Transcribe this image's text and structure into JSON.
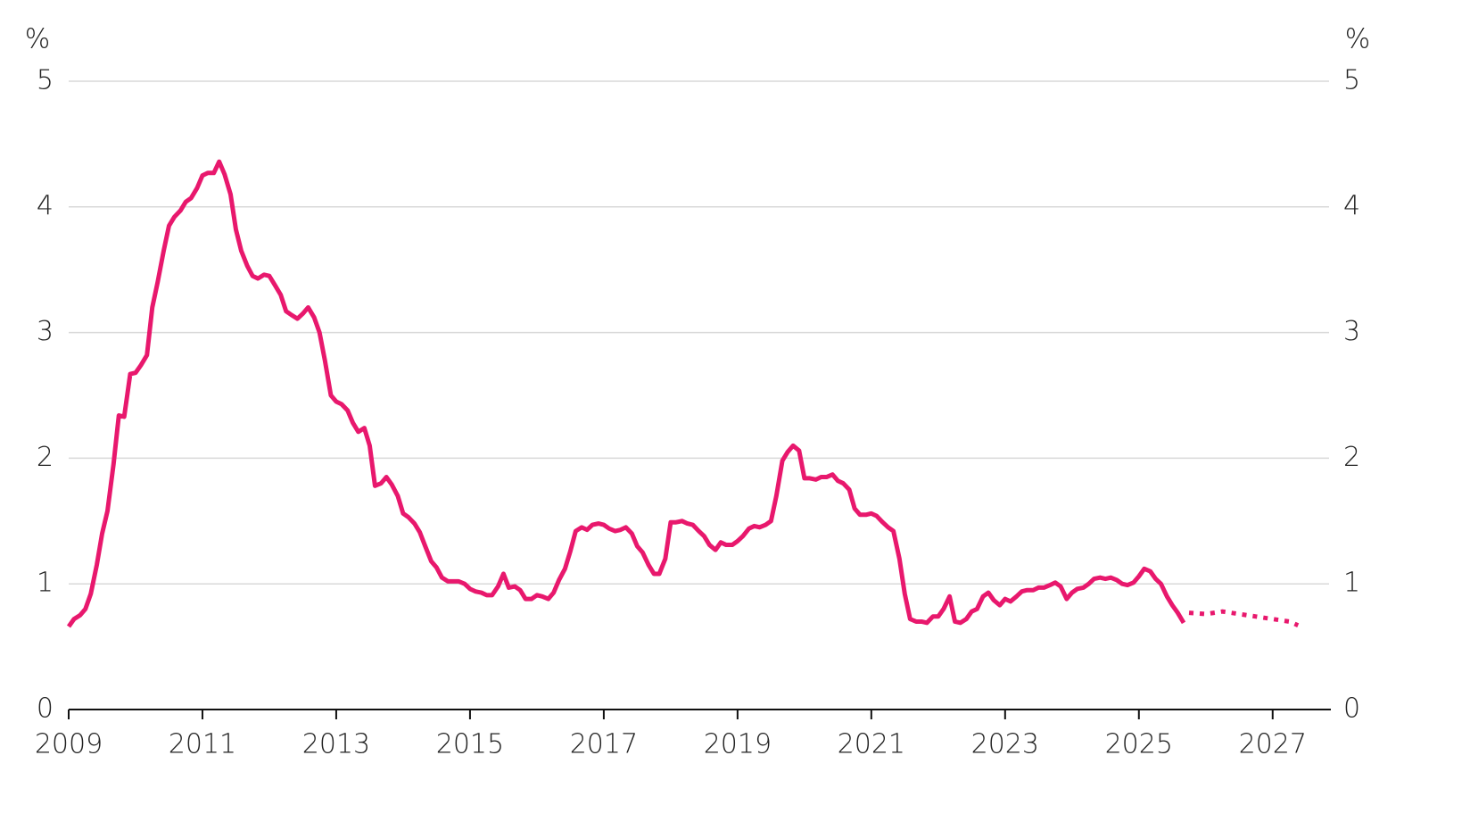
{
  "chart_data": {
    "type": "line",
    "ylabel": "%",
    "y2label": "%",
    "xlim": [
      2009,
      2027.87
    ],
    "xticks": [
      2009,
      2011,
      2013,
      2015,
      2017,
      2019,
      2021,
      2023,
      2025,
      2027
    ],
    "ylim": [
      0,
      5
    ],
    "yticks": [
      0,
      1,
      2,
      3,
      4,
      5
    ],
    "y2lim": [
      0,
      5
    ],
    "y2ticks": [
      0,
      1,
      2,
      3,
      4,
      5
    ],
    "grid": true,
    "series": [
      {
        "color": "#e8186d",
        "style": "solid",
        "x": [
          2009,
          2009.08,
          2009.17,
          2009.25,
          2009.33,
          2009.42,
          2009.5,
          2009.58,
          2009.67,
          2009.75,
          2009.83,
          2009.92,
          2010,
          2010.08,
          2010.17,
          2010.25,
          2010.33,
          2010.42,
          2010.5,
          2010.58,
          2010.67,
          2010.75,
          2010.83,
          2010.92,
          2011,
          2011.08,
          2011.17,
          2011.25,
          2011.33,
          2011.42,
          2011.5,
          2011.58,
          2011.67,
          2011.75,
          2011.83,
          2011.92,
          2012,
          2012.08,
          2012.17,
          2012.25,
          2012.33,
          2012.42,
          2012.5,
          2012.58,
          2012.67,
          2012.75,
          2012.83,
          2012.92,
          2013,
          2013.08,
          2013.17,
          2013.25,
          2013.33,
          2013.42,
          2013.5,
          2013.58,
          2013.67,
          2013.75,
          2013.83,
          2013.92,
          2014,
          2014.08,
          2014.17,
          2014.25,
          2014.33,
          2014.42,
          2014.5,
          2014.58,
          2014.67,
          2014.75,
          2014.83,
          2014.92,
          2015,
          2015.08,
          2015.17,
          2015.25,
          2015.33,
          2015.42,
          2015.5,
          2015.58,
          2015.67,
          2015.75,
          2015.83,
          2015.92,
          2016,
          2016.08,
          2016.17,
          2016.25,
          2016.33,
          2016.42,
          2016.5,
          2016.58,
          2016.67,
          2016.75,
          2016.83,
          2016.92,
          2017,
          2017.08,
          2017.17,
          2017.25,
          2017.33,
          2017.42,
          2017.5,
          2017.58,
          2017.67,
          2017.75,
          2017.83,
          2017.92,
          2018,
          2018.08,
          2018.17,
          2018.25,
          2018.33,
          2018.42,
          2018.5,
          2018.58,
          2018.67,
          2018.75,
          2018.83,
          2018.92,
          2019,
          2019.08,
          2019.17,
          2019.25,
          2019.33,
          2019.42,
          2019.5,
          2019.58,
          2019.67,
          2019.75,
          2019.83,
          2019.92,
          2020,
          2020.08,
          2020.17,
          2020.25,
          2020.33,
          2020.42,
          2020.5,
          2020.58,
          2020.67,
          2020.75,
          2020.83,
          2020.92,
          2021,
          2021.08,
          2021.17,
          2021.25,
          2021.33,
          2021.42,
          2021.5,
          2021.58,
          2021.67,
          2021.75,
          2021.83,
          2021.92,
          2022,
          2022.08,
          2022.17,
          2022.25,
          2022.33,
          2022.42,
          2022.5,
          2022.58,
          2022.67,
          2022.75,
          2022.83,
          2022.92,
          2023,
          2023.08,
          2023.17,
          2023.25,
          2023.33,
          2023.42,
          2023.5,
          2023.58,
          2023.67,
          2023.75,
          2023.83,
          2023.92,
          2024,
          2024.08,
          2024.17,
          2024.25,
          2024.33,
          2024.42,
          2024.5,
          2024.58,
          2024.67,
          2024.75,
          2024.83,
          2024.92,
          2025,
          2025.08,
          2025.17,
          2025.25,
          2025.33,
          2025.42,
          2025.5,
          2025.58,
          2025.67
        ],
        "values": [
          0.66,
          0.72,
          0.75,
          0.8,
          0.92,
          1.15,
          1.4,
          1.58,
          1.95,
          2.34,
          2.33,
          2.67,
          2.68,
          2.74,
          2.82,
          3.2,
          3.4,
          3.65,
          3.85,
          3.92,
          3.97,
          4.04,
          4.07,
          4.15,
          4.25,
          4.27,
          4.27,
          4.36,
          4.26,
          4.1,
          3.82,
          3.65,
          3.53,
          3.45,
          3.43,
          3.46,
          3.45,
          3.38,
          3.3,
          3.17,
          3.14,
          3.11,
          3.15,
          3.2,
          3.12,
          3.0,
          2.78,
          2.5,
          2.45,
          2.43,
          2.38,
          2.28,
          2.21,
          2.24,
          2.1,
          1.78,
          1.8,
          1.85,
          1.79,
          1.7,
          1.56,
          1.53,
          1.48,
          1.41,
          1.3,
          1.18,
          1.13,
          1.05,
          1.02,
          1.02,
          1.02,
          1.0,
          0.96,
          0.94,
          0.93,
          0.91,
          0.91,
          0.98,
          1.08,
          0.97,
          0.98,
          0.95,
          0.88,
          0.88,
          0.91,
          0.9,
          0.88,
          0.93,
          1.03,
          1.12,
          1.26,
          1.42,
          1.45,
          1.43,
          1.47,
          1.48,
          1.47,
          1.44,
          1.42,
          1.43,
          1.45,
          1.4,
          1.3,
          1.25,
          1.15,
          1.08,
          1.08,
          1.2,
          1.49,
          1.49,
          1.5,
          1.48,
          1.47,
          1.42,
          1.38,
          1.31,
          1.27,
          1.33,
          1.31,
          1.31,
          1.34,
          1.38,
          1.44,
          1.46,
          1.45,
          1.47,
          1.5,
          1.7,
          1.98,
          2.05,
          2.1,
          2.06,
          1.84,
          1.84,
          1.83,
          1.85,
          1.85,
          1.87,
          1.82,
          1.8,
          1.75,
          1.6,
          1.55,
          1.55,
          1.56,
          1.54,
          1.49,
          1.45,
          1.42,
          1.2,
          0.92,
          0.72,
          0.7,
          0.7,
          0.69,
          0.74,
          0.74,
          0.8,
          0.9,
          0.7,
          0.69,
          0.72,
          0.78,
          0.8,
          0.9,
          0.93,
          0.87,
          0.83,
          0.88,
          0.86,
          0.9,
          0.94,
          0.95,
          0.95,
          0.97,
          0.97,
          0.99,
          1.01,
          0.98,
          0.88,
          0.93,
          0.96,
          0.97,
          1.0,
          1.04,
          1.05,
          1.04,
          1.05,
          1.03,
          1.0,
          0.99,
          1.01,
          1.06,
          1.12,
          1.1,
          1.04,
          1.0,
          0.9,
          0.83,
          0.77,
          0.69
        ]
      },
      {
        "color": "#e8186d",
        "style": "dotted",
        "x": [
          2025.75,
          2026,
          2026.25,
          2026.5,
          2026.75,
          2027,
          2027.25,
          2027.38
        ],
        "values": [
          0.77,
          0.76,
          0.78,
          0.76,
          0.74,
          0.72,
          0.7,
          0.67
        ]
      }
    ]
  }
}
